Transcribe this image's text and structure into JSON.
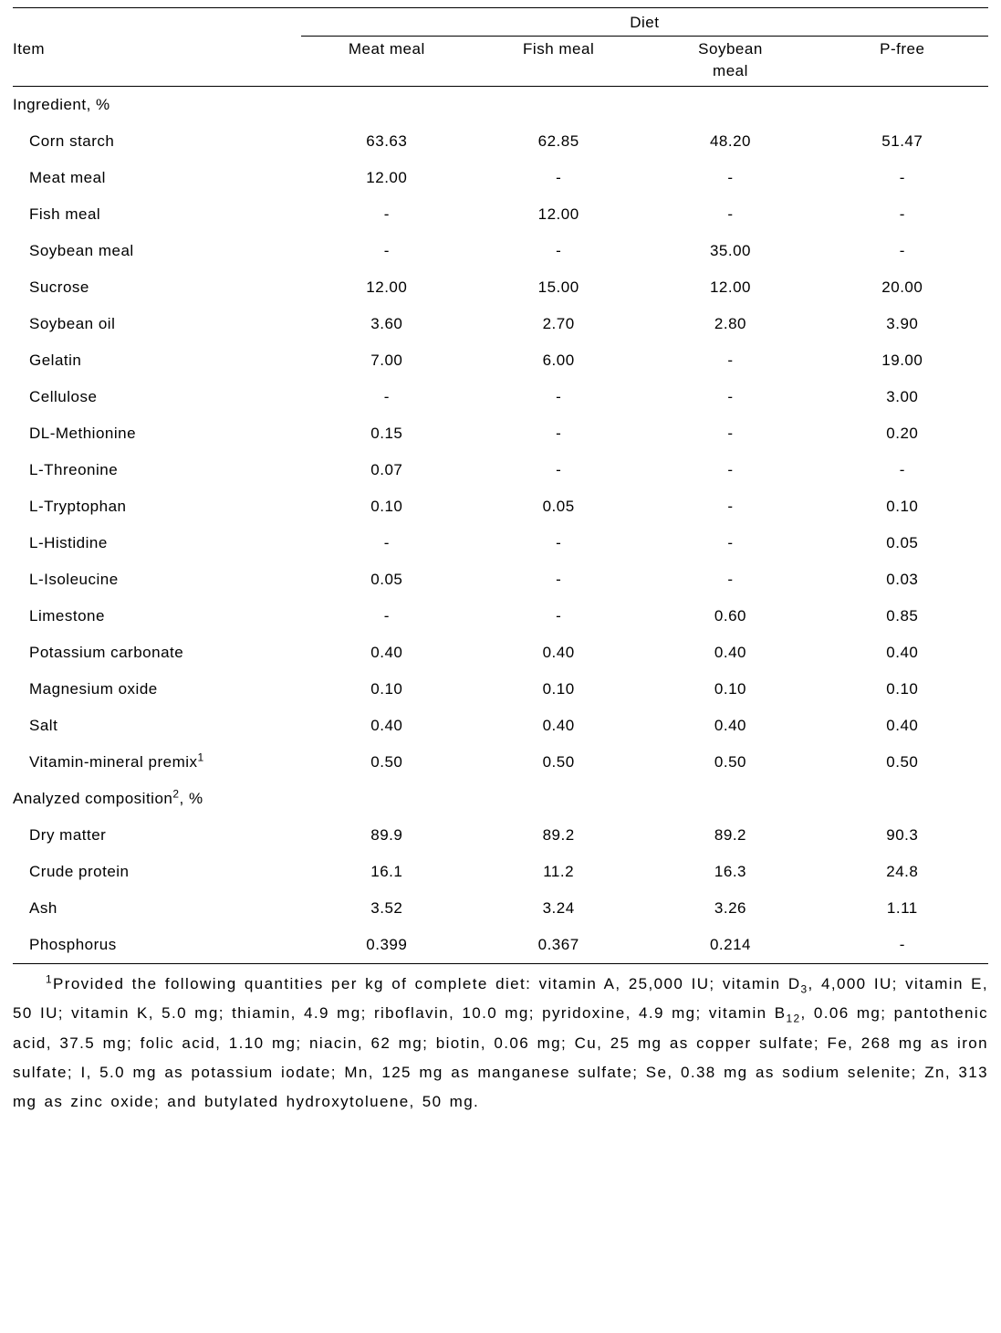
{
  "header": {
    "item_label": "Item",
    "spanner": "Diet",
    "cols": [
      "Meat meal",
      "Fish meal",
      "Soybean meal",
      "P-free"
    ],
    "col3_line1": "Soybean",
    "col3_line2": "meal"
  },
  "sections": [
    {
      "label": "Ingredient, %",
      "rows": [
        {
          "label": "Corn starch",
          "v": [
            "63.63",
            "62.85",
            "48.20",
            "51.47"
          ]
        },
        {
          "label": "Meat meal",
          "v": [
            "12.00",
            "-",
            "-",
            "-"
          ]
        },
        {
          "label": "Fish meal",
          "v": [
            "-",
            "12.00",
            "-",
            "-"
          ]
        },
        {
          "label": "Soybean meal",
          "v": [
            "-",
            "-",
            "35.00",
            "-"
          ]
        },
        {
          "label": "Sucrose",
          "v": [
            "12.00",
            "15.00",
            "12.00",
            "20.00"
          ]
        },
        {
          "label": "Soybean oil",
          "v": [
            "3.60",
            "2.70",
            "2.80",
            "3.90"
          ]
        },
        {
          "label": "Gelatin",
          "v": [
            "7.00",
            "6.00",
            "-",
            "19.00"
          ]
        },
        {
          "label": "Cellulose",
          "v": [
            "-",
            "-",
            "-",
            "3.00"
          ]
        },
        {
          "label": "DL-Methionine",
          "v": [
            "0.15",
            "-",
            "-",
            "0.20"
          ]
        },
        {
          "label": "L-Threonine",
          "v": [
            "0.07",
            "-",
            "-",
            "-"
          ]
        },
        {
          "label": "L-Tryptophan",
          "v": [
            "0.10",
            "0.05",
            "-",
            "0.10"
          ]
        },
        {
          "label": "L-Histidine",
          "v": [
            "-",
            "-",
            "-",
            "0.05"
          ]
        },
        {
          "label": "L-Isoleucine",
          "v": [
            "0.05",
            "-",
            "-",
            "0.03"
          ]
        },
        {
          "label": "Limestone",
          "v": [
            "-",
            "-",
            "0.60",
            "0.85"
          ]
        },
        {
          "label": "Potassium carbonate",
          "v": [
            "0.40",
            "0.40",
            "0.40",
            "0.40"
          ]
        },
        {
          "label": "Magnesium oxide",
          "v": [
            "0.10",
            "0.10",
            "0.10",
            "0.10"
          ]
        },
        {
          "label": "Salt",
          "v": [
            "0.40",
            "0.40",
            "0.40",
            "0.40"
          ]
        },
        {
          "label_html": "Vitamin-mineral premix<sup>1</sup>",
          "v": [
            "0.50",
            "0.50",
            "0.50",
            "0.50"
          ]
        }
      ]
    },
    {
      "label_html": "Analyzed composition<sup>2</sup>, %",
      "rows": [
        {
          "label": "Dry matter",
          "v": [
            "89.9",
            "89.2",
            "89.2",
            "90.3"
          ]
        },
        {
          "label": "Crude protein",
          "v": [
            "16.1",
            "11.2",
            "16.3",
            "24.8"
          ]
        },
        {
          "label": "Ash",
          "v": [
            "3.52",
            "3.24",
            "3.26",
            "1.11"
          ]
        },
        {
          "label": "Phosphorus",
          "v": [
            "0.399",
            "0.367",
            "0.214",
            "-"
          ]
        }
      ]
    }
  ],
  "footnote1_html": "<sup>1</sup>Provided the following quantities per kg of complete diet: vitamin A, 25,000 IU; vitamin D<sub>3</sub>, 4,000 IU; vitamin E, 50 IU; vitamin K, 5.0 mg; thiamin, 4.9 mg; riboflavin, 10.0 mg; pyridoxine, 4.9 mg; vitamin B<sub>12</sub>, 0.06 mg; pantothenic acid, 37.5 mg; folic acid, 1.10 mg; niacin, 62 mg; biotin, 0.06 mg; Cu, 25 mg as copper sulfate; Fe, 268 mg as iron sulfate; I, 5.0 mg as potassium iodate; Mn, 125 mg as manganese sulfate; Se, 0.38 mg as sodium selenite; Zn, 313 mg as zinc oxide; and butylated hydroxytoluene, 50 mg."
}
